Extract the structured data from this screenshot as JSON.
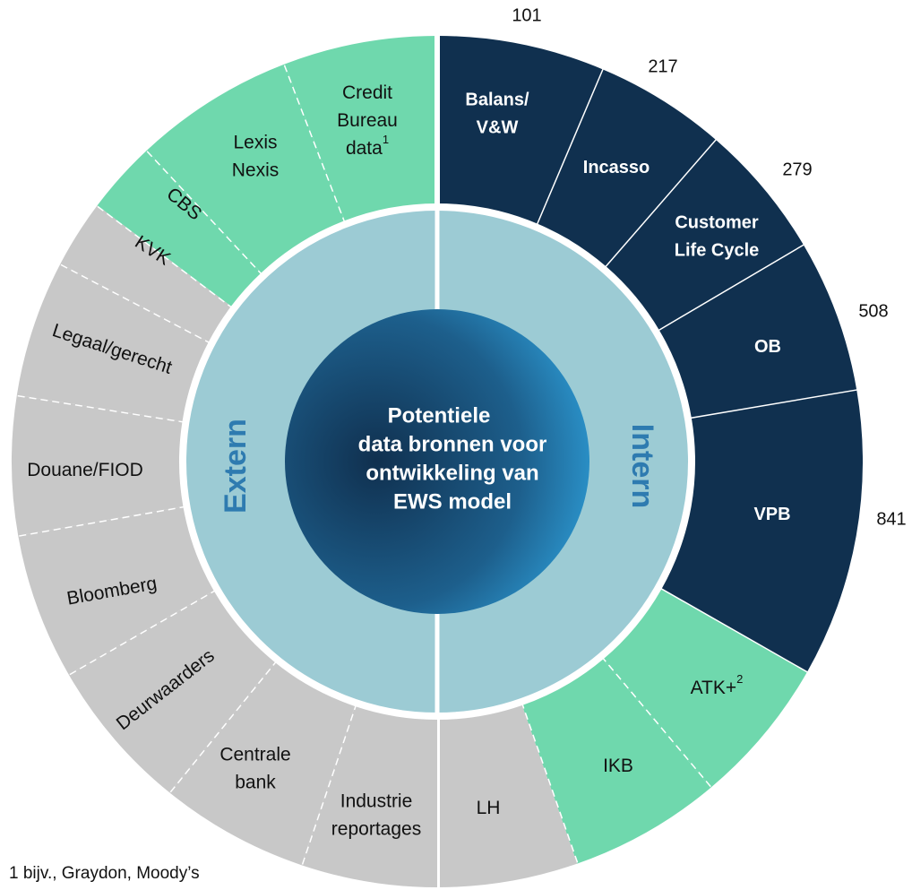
{
  "center": {
    "lines": [
      "Potentiele",
      "data bronnen voor",
      "ontwikkeling van",
      "EWS model"
    ]
  },
  "inner_labels": {
    "left": "Extern",
    "right": "Intern"
  },
  "segments": [
    {
      "lines": [
        "Balans/",
        "V&W"
      ],
      "color": "#10304f",
      "value": 101
    },
    {
      "lines": [
        "Incasso"
      ],
      "color": "#10304f",
      "value": 217
    },
    {
      "lines": [
        "Customer",
        "Life Cycle"
      ],
      "color": "#10304f",
      "value": 279
    },
    {
      "lines": [
        "OB"
      ],
      "color": "#10304f",
      "value": 508
    },
    {
      "lines": [
        "VPB"
      ],
      "color": "#10304f",
      "value": 841
    },
    {
      "lines": [
        "ATK+"
      ],
      "sup": "2",
      "color": "#6fd8ad"
    },
    {
      "lines": [
        "IKB"
      ],
      "color": "#6fd8ad"
    },
    {
      "lines": [
        "LH"
      ],
      "color": "#c8c8c8"
    },
    {
      "lines": [
        "Industrie",
        "reportages"
      ],
      "color": "#c8c8c8"
    },
    {
      "lines": [
        "Centrale",
        "bank"
      ],
      "color": "#c8c8c8"
    },
    {
      "lines": [
        "Deurwaarders"
      ],
      "color": "#c8c8c8"
    },
    {
      "lines": [
        "Bloomberg"
      ],
      "color": "#c8c8c8"
    },
    {
      "lines": [
        "Douane/FIOD"
      ],
      "color": "#c8c8c8"
    },
    {
      "lines": [
        "Legaal/gerecht"
      ],
      "color": "#c8c8c8"
    },
    {
      "lines": [
        "KVK"
      ],
      "color": "#c8c8c8"
    },
    {
      "lines": [
        "CBS"
      ],
      "color": "#6fd8ad"
    },
    {
      "lines": [
        "Lexis",
        "Nexis"
      ],
      "color": "#6fd8ad"
    },
    {
      "lines": [
        "Credit",
        "Bureau",
        "data"
      ],
      "sup": "1",
      "color": "#6fd8ad"
    }
  ],
  "footnote": "1 bijv., Graydon, Moody’s"
}
